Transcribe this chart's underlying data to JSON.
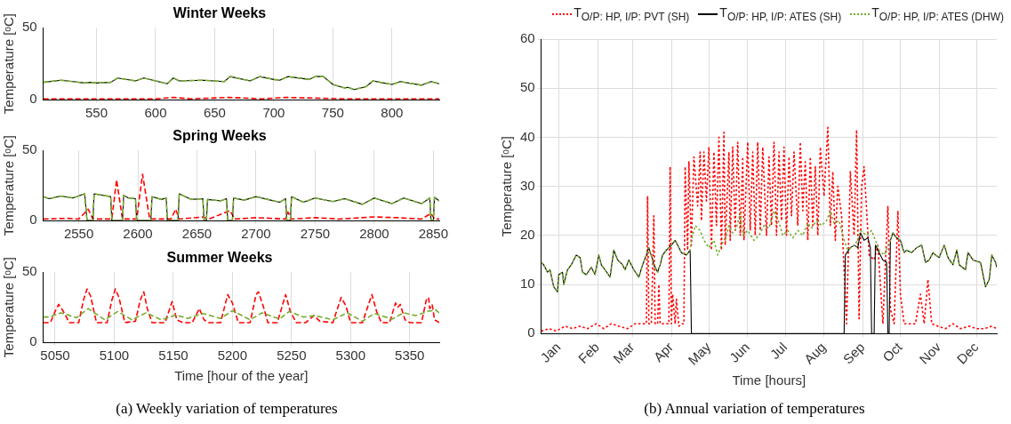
{
  "chart_data": [
    {
      "type": "line",
      "title": "Winter Weeks",
      "ylabel": "Temperature [ᵒC]",
      "xlim": [
        505,
        840
      ],
      "xticks": [
        550,
        600,
        650,
        700,
        750,
        800
      ],
      "ylim": [
        0,
        50
      ],
      "yticks": [
        0,
        50
      ],
      "grid": "x",
      "legend": false,
      "series": [
        {
          "color": "#ff0000",
          "line_style": "dashed",
          "x": [
            505,
            540,
            580,
            600,
            615,
            630,
            662,
            690,
            710,
            735,
            760,
            800,
            840
          ],
          "values": [
            0.5,
            0.5,
            0.5,
            0.5,
            1.5,
            0.5,
            1.5,
            0.5,
            1.5,
            1,
            0.5,
            0.5,
            0.5
          ]
        },
        {
          "color": "#000000",
          "line_style": "solid",
          "x": [
            505,
            520,
            530,
            540,
            545,
            550,
            562,
            568,
            583,
            590,
            600,
            610,
            615,
            620,
            640,
            658,
            663,
            680,
            688,
            700,
            705,
            712,
            730,
            735,
            742,
            750,
            760,
            763,
            768,
            778,
            784,
            790,
            800,
            807,
            825,
            833,
            840
          ],
          "values": [
            12,
            13.5,
            12.5,
            11.5,
            12,
            11.5,
            12,
            15,
            13,
            15,
            13,
            11,
            15,
            13,
            13.5,
            12.5,
            16,
            13,
            16,
            14,
            13.5,
            16,
            14,
            16,
            16,
            10.5,
            8,
            8.5,
            7,
            9,
            13,
            12,
            10.5,
            12.5,
            10,
            12.5,
            11
          ]
        },
        {
          "color": "#77ac30",
          "line_style": "dashed",
          "x": [
            505,
            520,
            530,
            540,
            545,
            550,
            562,
            568,
            583,
            590,
            600,
            610,
            615,
            620,
            640,
            658,
            663,
            680,
            688,
            700,
            705,
            712,
            730,
            735,
            742,
            750,
            760,
            763,
            768,
            778,
            784,
            790,
            800,
            807,
            825,
            833,
            840
          ],
          "values": [
            12,
            13.5,
            12.5,
            11.5,
            12,
            11.5,
            12,
            15,
            13,
            15,
            13,
            11,
            15,
            13,
            13.5,
            12.5,
            16,
            13,
            16,
            14,
            13.5,
            16,
            14,
            16,
            16,
            10.5,
            8,
            8.5,
            7,
            9,
            13,
            12,
            10.5,
            12.5,
            10,
            12.5,
            11
          ]
        }
      ]
    },
    {
      "type": "line",
      "title": "Spring Weeks",
      "ylabel": "Temperature [ᵒC]",
      "xlim": [
        2520,
        2855
      ],
      "xticks": [
        2550,
        2600,
        2650,
        2700,
        2750,
        2800,
        2850
      ],
      "ylim": [
        0,
        50
      ],
      "yticks": [
        0,
        50
      ],
      "grid": "x",
      "legend": false,
      "series": [
        {
          "color": "#ff0000",
          "line_style": "dashed",
          "x": [
            2520,
            2540,
            2550,
            2558,
            2562,
            2578,
            2582,
            2587,
            2599,
            2604,
            2610,
            2628,
            2632,
            2635,
            2655,
            2660,
            2678,
            2682,
            2700,
            2725,
            2727,
            2730,
            2750,
            2770,
            2800,
            2820,
            2840,
            2848,
            2851,
            2855
          ],
          "values": [
            1,
            1.5,
            1,
            8,
            1,
            1,
            29,
            1,
            1,
            33,
            1,
            1,
            8,
            1,
            2.5,
            1,
            7,
            1,
            2,
            1,
            6,
            1,
            2,
            1,
            2.5,
            2,
            1,
            5,
            1,
            1
          ]
        },
        {
          "color": "#000000",
          "line_style": "solid",
          "x": [
            2520,
            2525,
            2535,
            2545,
            2555,
            2557,
            2562,
            2563,
            2577,
            2578,
            2587,
            2588,
            2592,
            2598,
            2599,
            2611,
            2612,
            2620,
            2624,
            2625,
            2634,
            2635,
            2645,
            2655,
            2656,
            2658,
            2659,
            2670,
            2675,
            2676,
            2680,
            2681,
            2690,
            2700,
            2710,
            2720,
            2725,
            2726,
            2729,
            2730,
            2740,
            2750,
            2765,
            2775,
            2790,
            2800,
            2815,
            2825,
            2840,
            2847,
            2848,
            2850,
            2851,
            2855
          ],
          "values": [
            17,
            15.5,
            17.5,
            16,
            19,
            0,
            0,
            19,
            17,
            0,
            0,
            18,
            16,
            15.5,
            0,
            0,
            17,
            15,
            16,
            0,
            0,
            19,
            15,
            15.5,
            0,
            0,
            15,
            14,
            15.5,
            0,
            0,
            16,
            14.5,
            17,
            15,
            13,
            15.5,
            0,
            0,
            17,
            13,
            16,
            13.5,
            15.5,
            11.5,
            16,
            12,
            16,
            12,
            16,
            0,
            0,
            16.5,
            14
          ]
        },
        {
          "color": "#77ac30",
          "line_style": "dashed",
          "x": [
            2520,
            2525,
            2535,
            2545,
            2555,
            2557,
            2562,
            2563,
            2577,
            2578,
            2587,
            2588,
            2592,
            2598,
            2599,
            2611,
            2612,
            2620,
            2624,
            2625,
            2634,
            2635,
            2645,
            2655,
            2656,
            2658,
            2659,
            2670,
            2675,
            2676,
            2680,
            2681,
            2690,
            2700,
            2710,
            2720,
            2725,
            2726,
            2729,
            2730,
            2740,
            2750,
            2765,
            2775,
            2790,
            2800,
            2815,
            2825,
            2840,
            2847,
            2848,
            2850,
            2851,
            2855
          ],
          "values": [
            17,
            15.5,
            17.5,
            16,
            19,
            0,
            0,
            19,
            17,
            0,
            0,
            18,
            16,
            15.5,
            0,
            0,
            17,
            15,
            16,
            0,
            0,
            19,
            15,
            15.5,
            0,
            0,
            15,
            14,
            15.5,
            0,
            0,
            16,
            14.5,
            17,
            15,
            13,
            15.5,
            0,
            0,
            17,
            13,
            16,
            13.5,
            15.5,
            11.5,
            16,
            12,
            16,
            12,
            16,
            0,
            0,
            16.5,
            14
          ]
        }
      ]
    },
    {
      "type": "line",
      "title": "Summer Weeks",
      "xlabel": "Time [hour of the year]",
      "ylabel": "Temperature [ᵒC]",
      "xlim": [
        5040,
        5375
      ],
      "xticks": [
        5050,
        5100,
        5150,
        5200,
        5250,
        5300,
        5350
      ],
      "ylim": [
        0,
        50
      ],
      "yticks": [
        0,
        50
      ],
      "grid": "x",
      "legend": false,
      "annotations": [
        "(a) Weekly variation of temperatures"
      ],
      "series": [
        {
          "color": "#ff0000",
          "line_style": "dashed",
          "x": [
            5040,
            5046,
            5050,
            5053,
            5057,
            5062,
            5070,
            5074,
            5077,
            5080,
            5085,
            5094,
            5098,
            5101,
            5104,
            5109,
            5118,
            5122,
            5125,
            5128,
            5132,
            5143,
            5149,
            5153,
            5158,
            5166,
            5172,
            5176,
            5180,
            5190,
            5196,
            5198,
            5200,
            5205,
            5215,
            5220,
            5222,
            5226,
            5230,
            5238,
            5245,
            5249,
            5254,
            5262,
            5269,
            5274,
            5285,
            5292,
            5296,
            5300,
            5310,
            5318,
            5322,
            5326,
            5333,
            5338,
            5340,
            5342,
            5346,
            5350,
            5360,
            5364,
            5366,
            5367,
            5369,
            5371,
            5375
          ],
          "values": [
            14,
            14,
            22,
            27,
            22,
            14,
            14,
            30,
            38,
            33,
            14,
            14,
            30,
            38,
            32,
            14,
            15,
            30,
            36,
            24,
            14,
            14,
            29,
            16,
            14,
            14,
            24,
            16,
            14,
            14,
            34,
            31,
            28,
            14,
            14,
            34,
            36,
            26,
            14,
            14,
            34,
            22,
            14,
            14,
            19,
            15,
            14,
            32,
            26,
            14,
            14,
            34,
            22,
            14,
            14,
            28,
            25,
            27,
            16,
            14,
            14,
            30,
            32,
            24,
            27,
            16,
            14
          ]
        },
        {
          "color": "#77ac30",
          "line_style": "dashed",
          "x": [
            5040,
            5045,
            5055,
            5068,
            5078,
            5092,
            5103,
            5115,
            5127,
            5140,
            5152,
            5162,
            5175,
            5190,
            5200,
            5215,
            5225,
            5240,
            5248,
            5260,
            5270,
            5285,
            5297,
            5310,
            5320,
            5335,
            5345,
            5355,
            5365,
            5372,
            5375
          ],
          "values": [
            18,
            18,
            21,
            17.5,
            24,
            16,
            22,
            16,
            21,
            16,
            19.5,
            17,
            20.5,
            17,
            22.5,
            16,
            21,
            16.5,
            22,
            18,
            19,
            16,
            21,
            15,
            20.5,
            16.5,
            21,
            19,
            22,
            23,
            21
          ]
        }
      ]
    },
    {
      "type": "line",
      "xlabel": "Time [hours]",
      "ylabel": "Temperature [ᵒC]",
      "xlim": [
        "--01-01",
        "--12-31"
      ],
      "xticks": [
        {
          "value": "--01-15",
          "label": "Jan"
        },
        {
          "value": "--02-15",
          "label": "Feb"
        },
        {
          "value": "--03-15",
          "label": "Mar"
        },
        {
          "value": "--04-15",
          "label": "Apr"
        },
        {
          "value": "--05-15",
          "label": "May"
        },
        {
          "value": "--06-15",
          "label": "Jun"
        },
        {
          "value": "--07-15",
          "label": "Jul"
        },
        {
          "value": "--08-15",
          "label": "Aug"
        },
        {
          "value": "--09-15",
          "label": "Sep"
        },
        {
          "value": "--10-15",
          "label": "Oct"
        },
        {
          "value": "--11-15",
          "label": "Nov"
        },
        {
          "value": "--12-15",
          "label": "Dec"
        }
      ],
      "ylim": [
        0,
        60
      ],
      "yticks": [
        0,
        10,
        20,
        30,
        40,
        50,
        60
      ],
      "grid": true,
      "legend": "top",
      "annotations": [
        "(b) Annual variation of temperatures"
      ],
      "series": [
        {
          "name": "T$_{O/P: HP, I/P: PVT (SH)}$",
          "color": "#ff0000",
          "line_style": "dotted",
          "x": [
            "--01-01",
            "--01-07",
            "--01-13",
            "--01-20",
            "--01-26",
            "--02-01",
            "--02-07",
            "--02-14",
            "--02-20",
            "--02-26",
            "--03-04",
            "--03-11",
            "--03-17",
            "--03-23",
            "--03-26",
            "--03-27",
            "--03-28",
            "--03-30",
            "--04-01",
            "--04-02",
            "--04-04",
            "--04-05",
            "--04-06",
            "--04-13",
            "--04-14",
            "--04-15",
            "--04-16",
            "--04-18",
            "--04-19",
            "--04-21",
            "--04-23",
            "--04-25",
            "--04-26",
            "--04-28",
            "--04-29",
            "--05-01",
            "--05-03",
            "--05-06",
            "--05-08",
            "--05-09",
            "--05-11",
            "--05-13",
            "--05-15",
            "--05-17",
            "--05-19",
            "--05-21",
            "--05-23",
            "--05-25",
            "--05-27",
            "--05-28",
            "--05-31",
            "--06-01",
            "--06-03",
            "--06-05",
            "--06-07",
            "--06-09",
            "--06-11",
            "--06-12",
            "--06-15",
            "--06-17",
            "--06-19",
            "--06-21",
            "--06-23",
            "--06-25",
            "--06-27",
            "--06-30",
            "--07-02",
            "--07-04",
            "--07-06",
            "--07-08",
            "--07-10",
            "--07-12",
            "--07-14",
            "--07-16",
            "--07-18",
            "--07-20",
            "--07-22",
            "--07-25",
            "--07-27",
            "--07-29",
            "--07-31",
            "--08-02",
            "--08-04",
            "--08-06",
            "--08-08",
            "--08-10",
            "--08-12",
            "--08-15",
            "--08-18",
            "--08-20",
            "--08-22",
            "--08-24",
            "--08-26",
            "--08-29",
            "--09-02",
            "--09-05",
            "--09-08",
            "--09-10",
            "--09-12",
            "--09-14",
            "--09-16",
            "--09-20",
            "--09-24",
            "--09-27",
            "--10-01",
            "--10-05",
            "--10-07",
            "--10-10",
            "--10-13",
            "--10-15",
            "--10-18",
            "--10-22",
            "--10-27",
            "--10-31",
            "--11-03",
            "--11-06",
            "--11-09",
            "--11-14",
            "--11-20",
            "--11-26",
            "--12-02",
            "--12-09",
            "--12-15",
            "--12-21",
            "--12-27",
            "--12-31"
          ],
          "values": [
            0.5,
            1,
            0.5,
            1.5,
            1,
            1.5,
            1,
            2,
            1,
            2,
            1.5,
            1,
            2,
            2,
            2,
            28,
            2,
            2,
            24,
            2,
            2,
            10,
            2,
            2,
            34,
            2,
            8,
            2,
            7,
            1.5,
            2,
            2,
            34,
            17,
            35,
            18,
            36,
            26,
            37,
            23,
            37,
            27,
            38,
            17,
            37,
            22,
            40,
            17,
            41,
            18,
            37,
            19,
            38,
            21,
            39,
            20,
            36,
            19,
            39,
            21,
            37,
            20,
            39,
            21,
            38,
            20,
            36,
            22,
            39,
            20,
            37,
            23,
            38,
            20,
            36,
            24,
            37,
            22,
            39,
            25,
            35,
            19,
            36,
            22,
            34,
            20,
            38,
            28,
            42,
            22,
            33,
            19,
            30,
            24,
            2,
            33,
            20,
            41.5,
            3,
            30,
            34,
            16,
            15,
            18,
            2,
            26,
            5,
            2,
            25,
            8,
            2,
            2,
            2,
            8,
            2,
            11,
            2,
            1.5,
            1,
            2,
            1,
            1.5,
            1,
            1,
            1.5,
            1
          ]
        },
        {
          "name": "T$_{O/P: HP, I/P: ATES (SH)}$",
          "color": "#000000",
          "line_style": "solid",
          "x": [
            "--01-01",
            "--01-03",
            "--01-06",
            "--01-08",
            "--01-11",
            "--01-14",
            "--01-15",
            "--01-18",
            "--01-19",
            "--01-22",
            "--01-25",
            "--01-29",
            "--02-01",
            "--02-03",
            "--02-06",
            "--02-10",
            "--02-13",
            "--02-16",
            "--02-18",
            "--02-21",
            "--02-25",
            "--02-28",
            "--03-03",
            "--03-07",
            "--03-09",
            "--03-12",
            "--03-16",
            "--03-20",
            "--03-23",
            "--03-26",
            "--03-28",
            "--03-31",
            "--04-01",
            "--04-04",
            "--04-06",
            "--04-08",
            "--04-11",
            "--04-15",
            "--04-18",
            "--04-21",
            "--04-23",
            "--04-27",
            "--04-30",
            "--05-01",
            "--08-31",
            "--09-01",
            "--09-05",
            "--09-08",
            "--09-11",
            "--09-13",
            "--09-16",
            "--09-19",
            "--09-21",
            "--09-22",
            "--09-24",
            "--09-25",
            "--09-27",
            "--10-01",
            "--10-04",
            "--10-05",
            "--10-06",
            "--10-07",
            "--10-09",
            "--10-12",
            "--10-15",
            "--10-18",
            "--10-20",
            "--10-24",
            "--10-28",
            "--11-01",
            "--11-04",
            "--11-07",
            "--11-10",
            "--11-12",
            "--11-15",
            "--11-19",
            "--11-22",
            "--11-26",
            "--11-29",
            "--12-01",
            "--12-06",
            "--12-08",
            "--12-12",
            "--12-18",
            "--12-22",
            "--12-25",
            "--12-27",
            "--12-30",
            "--12-31"
          ],
          "values": [
            14.5,
            14,
            12.5,
            13,
            9.5,
            8.5,
            12,
            12.5,
            10,
            13,
            14,
            16,
            15.5,
            12.5,
            12,
            13.5,
            12,
            16,
            14,
            13,
            11.5,
            17,
            15,
            14,
            13,
            15,
            13,
            11.5,
            14,
            16,
            17.5,
            15,
            14,
            12.5,
            14,
            16,
            17,
            18,
            19,
            17.5,
            16.5,
            16,
            17,
            0,
            0,
            16,
            17.5,
            18,
            17.5,
            20.5,
            19,
            19.5,
            17.5,
            0,
            0,
            18,
            17,
            15,
            14.5,
            0,
            0,
            19,
            20.5,
            19.5,
            19,
            16.5,
            17,
            16.5,
            17.5,
            18,
            14.5,
            15,
            16.5,
            16,
            15.5,
            18,
            15.5,
            14,
            17,
            14,
            13,
            16.5,
            15,
            14.5,
            9.5,
            11,
            16,
            14.5,
            13.5
          ]
        },
        {
          "name": "T$_{O/P: HP, I/P: ATES (DHW)}$",
          "color": "#77ac30",
          "line_style": "dotted",
          "x": [
            "--01-01",
            "--01-03",
            "--01-06",
            "--01-08",
            "--01-11",
            "--01-14",
            "--01-15",
            "--01-18",
            "--01-19",
            "--01-22",
            "--01-25",
            "--01-29",
            "--02-01",
            "--02-03",
            "--02-06",
            "--02-10",
            "--02-13",
            "--02-16",
            "--02-18",
            "--02-21",
            "--02-25",
            "--02-28",
            "--03-03",
            "--03-07",
            "--03-09",
            "--03-12",
            "--03-16",
            "--03-20",
            "--03-23",
            "--03-26",
            "--03-28",
            "--03-31",
            "--04-01",
            "--04-04",
            "--04-06",
            "--04-08",
            "--04-11",
            "--04-15",
            "--04-18",
            "--04-21",
            "--04-23",
            "--04-27",
            "--04-30",
            "--05-01",
            "--05-04",
            "--05-08",
            "--05-11",
            "--05-15",
            "--05-19",
            "--05-22",
            "--05-25",
            "--05-29",
            "--05-31",
            "--06-03",
            "--06-06",
            "--06-09",
            "--06-11",
            "--06-15",
            "--06-20",
            "--06-24",
            "--06-28",
            "--07-02",
            "--07-06",
            "--07-09",
            "--07-13",
            "--07-17",
            "--07-21",
            "--07-25",
            "--07-29",
            "--08-02",
            "--08-05",
            "--08-09",
            "--08-13",
            "--08-17",
            "--08-20",
            "--08-23",
            "--08-27",
            "--08-31",
            "--09-03",
            "--09-08",
            "--09-11",
            "--09-13",
            "--09-18",
            "--09-22",
            "--09-25",
            "--09-28",
            "--10-02",
            "--10-07",
            "--10-09",
            "--10-12",
            "--10-15",
            "--10-18",
            "--10-20",
            "--10-24",
            "--10-28",
            "--11-01",
            "--11-04",
            "--11-07",
            "--11-10",
            "--11-12",
            "--11-15",
            "--11-19",
            "--11-22",
            "--11-26",
            "--11-29",
            "--12-01",
            "--12-06",
            "--12-08",
            "--12-12",
            "--12-18",
            "--12-22",
            "--12-25",
            "--12-27",
            "--12-30",
            "--12-31"
          ],
          "values": [
            14.5,
            14,
            12.5,
            13,
            9.5,
            8.5,
            12,
            12.5,
            10,
            13,
            14,
            16,
            15.5,
            12.5,
            12,
            13.5,
            12,
            16,
            14,
            13,
            11.5,
            17,
            15,
            14,
            13,
            15,
            13,
            11.5,
            14,
            16,
            17.5,
            15,
            14,
            12.5,
            14,
            16,
            17,
            18,
            19,
            17.5,
            16.5,
            16,
            17,
            19,
            22,
            21,
            19,
            17.5,
            19,
            16,
            18,
            20,
            22,
            20.5,
            21.5,
            24.5,
            20,
            21,
            19,
            20,
            22,
            21.5,
            25,
            23.5,
            20,
            21,
            19.5,
            21,
            20,
            22.5,
            21.5,
            23,
            22,
            23,
            25,
            22.5,
            23,
            19,
            17,
            18,
            19,
            21,
            20,
            21,
            19,
            17,
            16,
            19,
            20.5,
            19.5,
            19,
            16.5,
            17,
            16.5,
            17.5,
            18,
            14.5,
            15,
            16.5,
            16,
            15.5,
            18,
            15.5,
            14,
            17,
            14,
            13,
            16.5,
            15,
            14.5,
            9.5,
            11,
            16,
            14.5,
            13.5
          ]
        }
      ]
    }
  ]
}
